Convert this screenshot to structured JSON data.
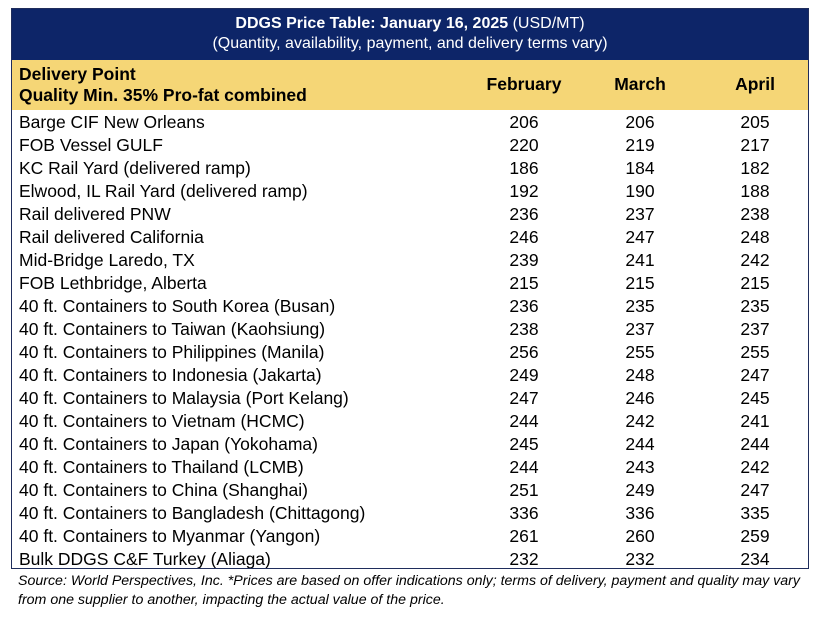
{
  "title": {
    "bold": "DDGS Price Table: January 16, 2025",
    "suffix": " (USD/MT)",
    "subtitle": "(Quantity, availability, payment, and delivery terms vary)"
  },
  "header": {
    "delivery_point": "Delivery Point",
    "quality": "Quality Min. 35% Pro-fat combined",
    "months": [
      "February",
      "March",
      "April"
    ]
  },
  "rows": [
    {
      "label": "Barge CIF New Orleans",
      "february": "206",
      "march": "206",
      "april": "205"
    },
    {
      "label": "FOB Vessel GULF",
      "february": "220",
      "march": "219",
      "april": "217"
    },
    {
      "label": "KC Rail Yard (delivered ramp)",
      "february": "186",
      "march": "184",
      "april": "182"
    },
    {
      "label": "Elwood, IL Rail Yard (delivered ramp)",
      "february": "192",
      "march": "190",
      "april": "188"
    },
    {
      "label": "Rail delivered PNW",
      "february": "236",
      "march": "237",
      "april": "238"
    },
    {
      "label": "Rail delivered California",
      "february": "246",
      "march": "247",
      "april": "248"
    },
    {
      "label": "Mid-Bridge Laredo, TX",
      "february": "239",
      "march": "241",
      "april": "242"
    },
    {
      "label": "FOB Lethbridge, Alberta",
      "february": "215",
      "march": "215",
      "april": "215"
    },
    {
      "label": "40 ft. Containers to South Korea (Busan)",
      "february": "236",
      "march": "235",
      "april": "235"
    },
    {
      "label": "40 ft. Containers to Taiwan (Kaohsiung)",
      "february": "238",
      "march": "237",
      "april": "237"
    },
    {
      "label": "40 ft. Containers to Philippines (Manila)",
      "february": "256",
      "march": "255",
      "april": "255"
    },
    {
      "label": "40 ft. Containers to Indonesia (Jakarta)",
      "february": "249",
      "march": "248",
      "april": "247"
    },
    {
      "label": "40 ft. Containers to Malaysia (Port Kelang)",
      "february": "247",
      "march": "246",
      "april": "245"
    },
    {
      "label": "40 ft. Containers to Vietnam (HCMC)",
      "february": "244",
      "march": "242",
      "april": "241"
    },
    {
      "label": "40 ft. Containers to Japan (Yokohama)",
      "february": "245",
      "march": "244",
      "april": "244"
    },
    {
      "label": "40 ft. Containers to Thailand (LCMB)",
      "february": "244",
      "march": "243",
      "april": "242"
    },
    {
      "label": "40 ft. Containers to China (Shanghai)",
      "february": "251",
      "march": "249",
      "april": "247"
    },
    {
      "label": "40 ft. Containers to Bangladesh (Chittagong)",
      "february": "336",
      "march": "336",
      "april": "335"
    },
    {
      "label": "40 ft. Containers to Myanmar (Yangon)",
      "february": "261",
      "march": "260",
      "april": "259"
    },
    {
      "label": "Bulk DDGS C&F Turkey (Aliaga)",
      "february": "232",
      "march": "232",
      "april": "234"
    }
  ],
  "footnote": "Source: World Perspectives, Inc. *Prices are based on offer indications only; terms of delivery, payment and quality may vary from one supplier to another, impacting the actual value of the price.",
  "colors": {
    "title_bg": "#0d2568",
    "header_bg": "#f5d676"
  }
}
